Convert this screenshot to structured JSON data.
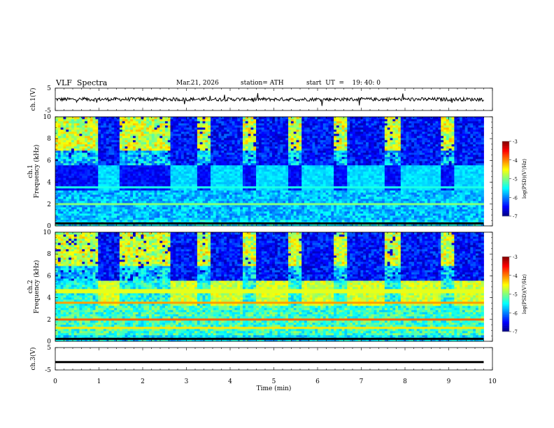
{
  "header": {
    "title": "VLF  Spectra",
    "date": "Mar.21, 2026",
    "station": "station= ATH",
    "start_time": "start  UT  =    19: 40: 0"
  },
  "chart_data": [
    {
      "type": "line",
      "panel": "ch1-waveform",
      "ylabel": "ch.1(V)",
      "ylim": [
        -5,
        5
      ],
      "yticks": [
        "5",
        "-5"
      ],
      "description_values": "noisy waveform oscillating near 0 V with spikes of about +/-1 V",
      "x": [
        0,
        1,
        2,
        3,
        4,
        5,
        6,
        7,
        8,
        9,
        9.8
      ],
      "y": [
        0,
        0.2,
        -0.3,
        0.1,
        -0.2,
        0.3,
        0,
        -0.2,
        0.1,
        0.2,
        0
      ]
    },
    {
      "type": "heatmap",
      "panel": "ch1-spectrogram",
      "ylabel": "ch.1\nFrequency  (kHz)",
      "ylim": [
        0,
        10
      ],
      "yticks": [
        "0",
        "2",
        "4",
        "6",
        "8",
        "10"
      ],
      "colorbar": {
        "label": "log(PSD)(V²/Hz)",
        "range": [
          -7,
          -3
        ],
        "ticks": [
          "-3",
          "-4",
          "-5",
          "-6",
          "-7"
        ]
      },
      "quiet_intervals_min": [
        [
          1.0,
          1.5
        ],
        [
          2.65,
          3.25
        ],
        [
          3.55,
          4.3
        ],
        [
          4.6,
          5.3
        ],
        [
          5.65,
          6.4
        ],
        [
          6.7,
          7.55
        ],
        [
          7.9,
          8.8
        ],
        [
          9.15,
          9.8
        ]
      ]
    },
    {
      "type": "heatmap",
      "panel": "ch2-spectrogram",
      "ylabel": "ch.2\nFrequency  (kHz)",
      "ylim": [
        0,
        10
      ],
      "yticks": [
        "0",
        "2",
        "4",
        "6",
        "8",
        "10"
      ],
      "colorbar": {
        "label": "log(PSD)(V²/Hz)",
        "range": [
          -7,
          -3
        ],
        "ticks": [
          "-3",
          "-4",
          "-5",
          "-6",
          "-7"
        ]
      },
      "quiet_intervals_min": [
        [
          1.0,
          1.5
        ],
        [
          2.65,
          3.25
        ],
        [
          3.55,
          4.3
        ],
        [
          4.6,
          5.3
        ],
        [
          5.65,
          6.4
        ],
        [
          6.7,
          7.55
        ],
        [
          7.9,
          8.8
        ],
        [
          9.15,
          9.8
        ]
      ]
    },
    {
      "type": "line",
      "panel": "ch3-waveform",
      "ylabel": "ch.3(V)",
      "ylim": [
        -5,
        5
      ],
      "yticks": [
        "5",
        "-5"
      ],
      "x": [
        0,
        9.8
      ],
      "y": [
        -1.5,
        -1.5
      ]
    }
  ],
  "xaxis": {
    "label": "Time  (min)",
    "range": [
      0,
      10
    ],
    "ticks": [
      "0",
      "1",
      "2",
      "3",
      "4",
      "5",
      "6",
      "7",
      "8",
      "9",
      "10"
    ]
  }
}
